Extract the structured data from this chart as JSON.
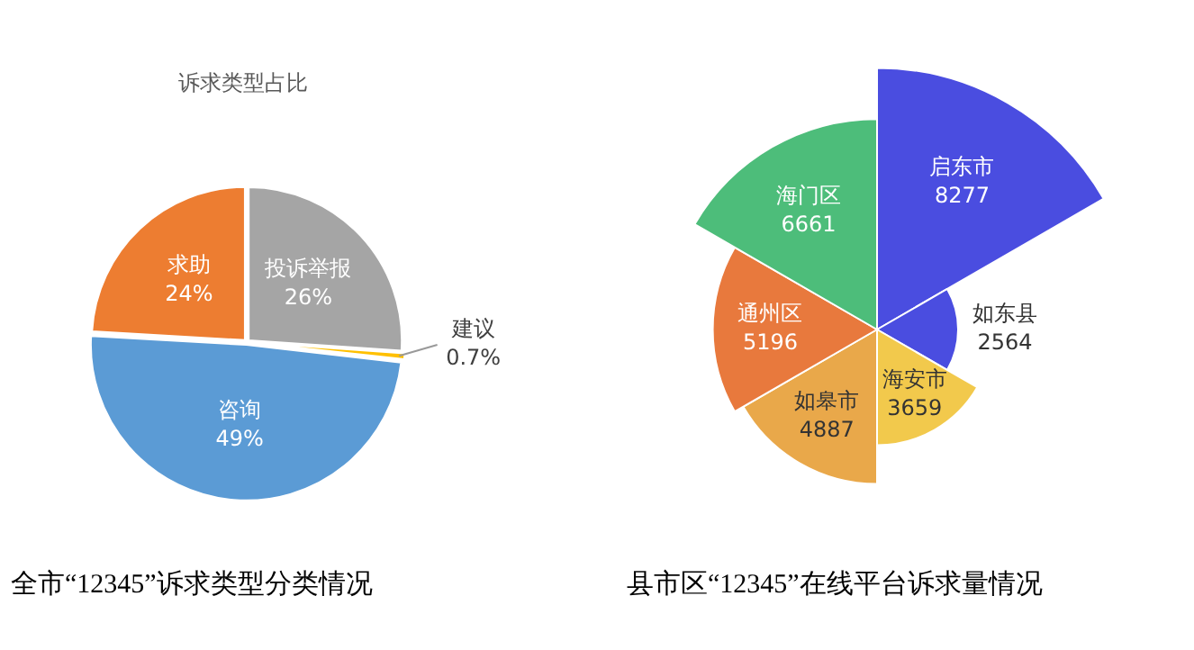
{
  "chart_data": [
    {
      "type": "pie",
      "title": "诉求类型占比",
      "categories": [
        "投诉举报",
        "建议",
        "咨询",
        "求助"
      ],
      "values": [
        26,
        0.7,
        49,
        24
      ],
      "colors": [
        "#a5a5a5",
        "#ffc000",
        "#5b9bd5",
        "#ed7d31"
      ],
      "value_labels": [
        "26%",
        "0.7%",
        "49%",
        "24%"
      ],
      "annotations": [
        "全市“12345”诉求类型分类情况"
      ]
    },
    {
      "type": "other",
      "categories": [
        "启东市",
        "如东县",
        "海安市",
        "如皋市",
        "通州区",
        "海门区"
      ],
      "values": [
        8277,
        2564,
        3659,
        4887,
        5196,
        6661
      ],
      "colors": [
        "#4a4de0",
        "#4a4de0",
        "#f2c94c",
        "#e9a84a",
        "#e8793d",
        "#4dbd7a"
      ],
      "data_labels": true,
      "annotations": [
        "县市区“12345”在线平台诉求量情况"
      ]
    }
  ]
}
